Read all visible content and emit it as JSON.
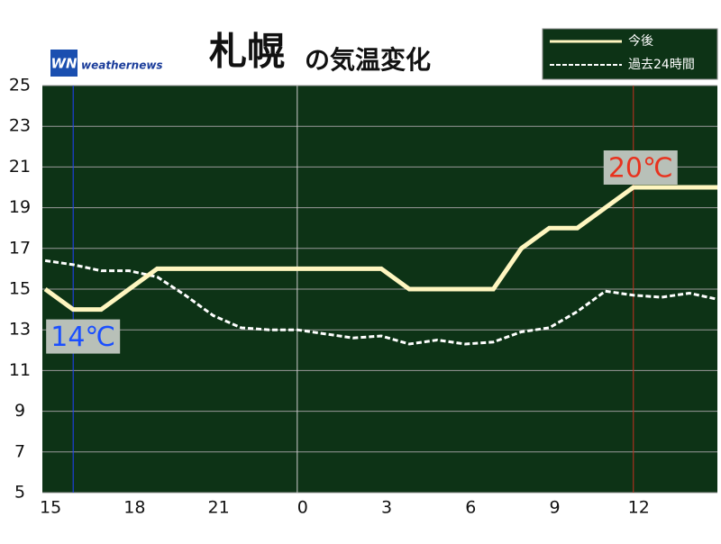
{
  "chart_data": {
    "type": "line",
    "title": "札幌",
    "subtitle": "の気温変化",
    "logo": "weathernews",
    "x": [
      0,
      1,
      2,
      3,
      4,
      5,
      6,
      7,
      8,
      9,
      10,
      11,
      12,
      13,
      14,
      15,
      16,
      17,
      18,
      19,
      20,
      21,
      22,
      23,
      24
    ],
    "xlim": [
      -0.1,
      24
    ],
    "xticks": [
      {
        "value": 0,
        "label": "15"
      },
      {
        "value": 3,
        "label": "18"
      },
      {
        "value": 6,
        "label": "21"
      },
      {
        "value": 9,
        "label": "0"
      },
      {
        "value": 12,
        "label": "3"
      },
      {
        "value": 15,
        "label": "6"
      },
      {
        "value": 18,
        "label": "9"
      },
      {
        "value": 21,
        "label": "12"
      }
    ],
    "ylim": [
      5,
      25
    ],
    "yticks": [
      5,
      7,
      9,
      11,
      13,
      15,
      17,
      19,
      21,
      23,
      25
    ],
    "grid": true,
    "series": [
      {
        "name": "今後",
        "color": "#fff6c0",
        "style": "solid",
        "values": [
          15,
          14,
          14,
          15,
          16,
          16,
          16,
          16,
          16,
          16,
          16,
          16,
          16,
          15,
          15,
          15,
          15,
          17,
          18,
          18,
          19,
          20,
          20,
          20,
          20
        ]
      },
      {
        "name": "過去24時間",
        "color": "#ffffff",
        "style": "dashed",
        "values": [
          16.4,
          16.2,
          15.9,
          15.9,
          15.6,
          14.7,
          13.7,
          13.1,
          13.0,
          13.0,
          12.8,
          12.6,
          12.7,
          12.3,
          12.5,
          12.3,
          12.4,
          12.9,
          13.1,
          13.9,
          14.9,
          14.7,
          14.6,
          14.8,
          14.5
        ]
      }
    ],
    "vlines": [
      {
        "x": 1,
        "color": "#2040ff"
      },
      {
        "x": 9,
        "color": "#cccccc"
      },
      {
        "x": 21,
        "color": "#c03020"
      }
    ],
    "annotations": [
      {
        "x": 1,
        "y": 14,
        "label": "14℃",
        "color": "#1a4fff"
      },
      {
        "x": 21,
        "y": 20,
        "label": "20℃",
        "color": "#e8321e"
      }
    ]
  }
}
